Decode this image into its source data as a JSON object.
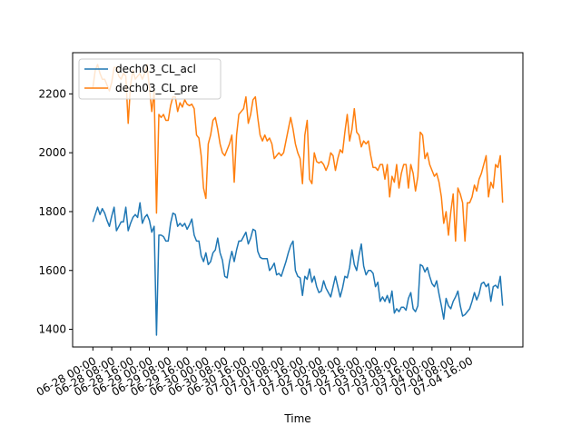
{
  "chart_data": {
    "type": "line",
    "xlabel": "Time",
    "ylabel": "",
    "ylim": [
      1340,
      2340
    ],
    "legend_position": "top-left",
    "grid": false,
    "x_tick_labels": [
      "06-28 00:00",
      "06-28 08:00",
      "06-28 16:00",
      "06-29 00:00",
      "06-29 08:00",
      "06-29 16:00",
      "06-30 00:00",
      "06-30 08:00",
      "06-30 16:00",
      "07-01 00:00",
      "07-01 08:00",
      "07-01 16:00",
      "07-02 00:00",
      "07-02 08:00",
      "07-02 16:00",
      "07-03 00:00",
      "07-03 08:00",
      "07-03 16:00",
      "07-04 00:00",
      "07-04 08:00",
      "07-04 16:00"
    ],
    "y_ticks": [
      1400,
      1600,
      1800,
      2000,
      2200
    ],
    "series": [
      {
        "name": "dech03_CL_acl",
        "color": "#1f77b4",
        "values": [
          1765,
          1790,
          1815,
          1790,
          1810,
          1795,
          1770,
          1750,
          1785,
          1815,
          1735,
          1750,
          1765,
          1765,
          1815,
          1735,
          1760,
          1780,
          1790,
          1780,
          1830,
          1760,
          1780,
          1790,
          1770,
          1730,
          1750,
          1380,
          1720,
          1720,
          1715,
          1700,
          1700,
          1760,
          1795,
          1790,
          1750,
          1760,
          1750,
          1760,
          1740,
          1755,
          1775,
          1720,
          1700,
          1700,
          1650,
          1630,
          1660,
          1620,
          1630,
          1660,
          1670,
          1710,
          1660,
          1635,
          1580,
          1575,
          1630,
          1665,
          1630,
          1670,
          1700,
          1700,
          1715,
          1730,
          1690,
          1710,
          1740,
          1735,
          1665,
          1645,
          1640,
          1640,
          1640,
          1600,
          1610,
          1625,
          1585,
          1590,
          1580,
          1605,
          1630,
          1660,
          1685,
          1700,
          1600,
          1580,
          1575,
          1515,
          1580,
          1570,
          1605,
          1560,
          1580,
          1545,
          1525,
          1530,
          1565,
          1540,
          1525,
          1510,
          1545,
          1580,
          1545,
          1510,
          1540,
          1580,
          1575,
          1610,
          1670,
          1620,
          1600,
          1650,
          1690,
          1615,
          1585,
          1600,
          1600,
          1590,
          1545,
          1560,
          1495,
          1510,
          1495,
          1515,
          1490,
          1530,
          1455,
          1470,
          1460,
          1475,
          1475,
          1465,
          1505,
          1525,
          1470,
          1460,
          1480,
          1620,
          1615,
          1595,
          1610,
          1580,
          1555,
          1545,
          1565,
          1520,
          1480,
          1435,
          1505,
          1480,
          1470,
          1495,
          1510,
          1530,
          1480,
          1445,
          1450,
          1460,
          1470,
          1495,
          1525,
          1500,
          1520,
          1555,
          1560,
          1545,
          1555,
          1495,
          1545,
          1550,
          1540,
          1580,
          1480
        ],
        "x_start": 0,
        "x_step": 1
      },
      {
        "name": "dech03_CL_pre",
        "color": "#ff7f0e",
        "values": [
          2220,
          2280,
          2300,
          2270,
          2250,
          2250,
          2230,
          2210,
          2240,
          2290,
          2290,
          2260,
          2250,
          2270,
          2260,
          2100,
          2230,
          2280,
          2250,
          2260,
          2270,
          2250,
          2270,
          2300,
          2220,
          2140,
          2210,
          1795,
          2130,
          2120,
          2130,
          2110,
          2110,
          2160,
          2190,
          2190,
          2140,
          2170,
          2155,
          2180,
          2165,
          2160,
          2165,
          2150,
          2060,
          2050,
          1990,
          1880,
          1845,
          2030,
          2060,
          2110,
          2120,
          2080,
          2030,
          2000,
          1990,
          2010,
          2030,
          2060,
          1900,
          2060,
          2130,
          2140,
          2150,
          2190,
          2100,
          2130,
          2180,
          2190,
          2120,
          2060,
          2040,
          2060,
          2040,
          2050,
          2030,
          1980,
          1990,
          2000,
          1990,
          2000,
          2040,
          2080,
          2120,
          2080,
          2030,
          2000,
          1980,
          1895,
          2060,
          2110,
          1910,
          1895,
          2000,
          1970,
          1965,
          1970,
          1960,
          1940,
          1960,
          2000,
          1990,
          1940,
          1980,
          2010,
          2000,
          2070,
          2130,
          2040,
          2080,
          2150,
          2070,
          2060,
          2020,
          2040,
          2030,
          2040,
          1990,
          1950,
          1950,
          1940,
          1960,
          1960,
          1910,
          1960,
          1850,
          1920,
          1900,
          1960,
          1880,
          1930,
          1960,
          1960,
          1880,
          1960,
          1930,
          1870,
          1920,
          2070,
          2060,
          1980,
          2000,
          1960,
          1940,
          1920,
          1930,
          1900,
          1850,
          1760,
          1800,
          1720,
          1800,
          1860,
          1700,
          1880,
          1860,
          1830,
          1700,
          1830,
          1830,
          1850,
          1890,
          1870,
          1910,
          1930,
          1960,
          1990,
          1850,
          1900,
          1880,
          1960,
          1950,
          1990,
          1830
        ],
        "x_start": 0,
        "x_step": 1
      }
    ]
  }
}
